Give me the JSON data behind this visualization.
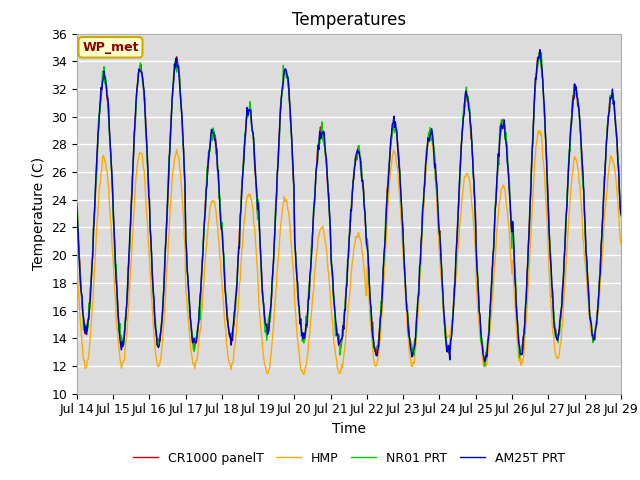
{
  "title": "Temperatures",
  "xlabel": "Time",
  "ylabel": "Temperature (C)",
  "ylim": [
    10,
    36
  ],
  "xlim": [
    0,
    360
  ],
  "yticks": [
    10,
    12,
    14,
    16,
    18,
    20,
    22,
    24,
    26,
    28,
    30,
    32,
    34,
    36
  ],
  "xtick_labels": [
    "Jul 14",
    "Jul 15",
    "Jul 16",
    "Jul 17",
    "Jul 18",
    "Jul 19",
    "Jul 20",
    "Jul 21",
    "Jul 22",
    "Jul 23",
    "Jul 24",
    "Jul 25",
    "Jul 26",
    "Jul 27",
    "Jul 28",
    "Jul 29"
  ],
  "xtick_positions": [
    0,
    24,
    48,
    72,
    96,
    120,
    144,
    168,
    192,
    216,
    240,
    264,
    288,
    312,
    336,
    360
  ],
  "colors": {
    "CR1000": "#cc0000",
    "HMP": "#ffaa00",
    "NR01": "#00cc00",
    "AM25T": "#0000cc"
  },
  "legend_labels": [
    "CR1000 panelT",
    "HMP",
    "NR01 PRT",
    "AM25T PRT"
  ],
  "station_label": "WP_met",
  "plot_bg": "#dcdcdc",
  "fig_bg": "#ffffff",
  "grid_color": "#ffffff",
  "title_fontsize": 12,
  "label_fontsize": 10,
  "tick_fontsize": 9
}
